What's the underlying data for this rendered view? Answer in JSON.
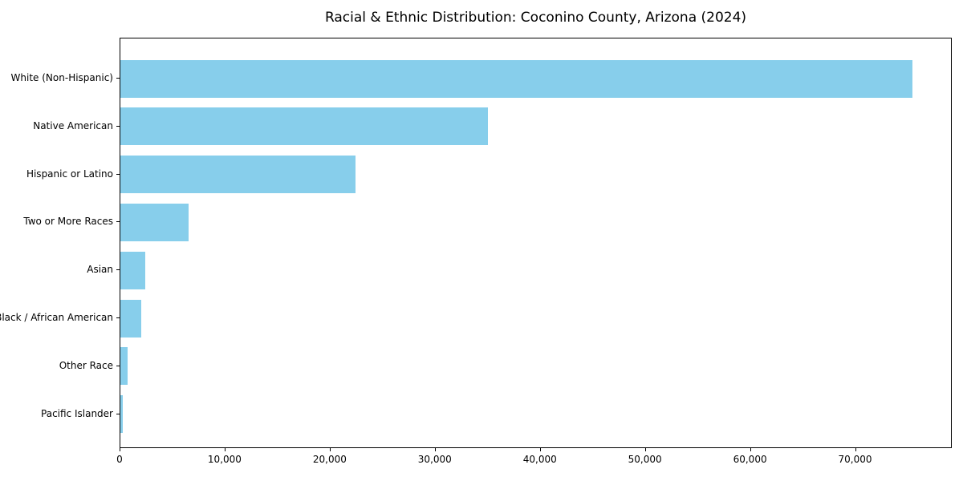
{
  "figure": {
    "background_color": "#ffffff",
    "frame_color": "#000000"
  },
  "chart_data": {
    "type": "bar",
    "orientation": "horizontal",
    "title": "Racial & Ethnic Distribution: Coconino County, Arizona (2024)",
    "xlabel": "",
    "ylabel": "",
    "categories": [
      "White (Non-Hispanic)",
      "Native American",
      "Hispanic or Latino",
      "Two or More Races",
      "Asian",
      "Black / African American",
      "Other Race",
      "Pacific Islander"
    ],
    "values": [
      75400,
      35000,
      22400,
      6500,
      2400,
      2000,
      650,
      200
    ],
    "xlim": [
      0,
      79200
    ],
    "xticks": [
      0,
      10000,
      20000,
      30000,
      40000,
      50000,
      60000,
      70000
    ],
    "xtick_labels": [
      "0",
      "10,000",
      "20,000",
      "30,000",
      "40,000",
      "50,000",
      "60,000",
      "70,000"
    ],
    "bar_color": "#87CEEB",
    "grid": false,
    "legend_position": "none"
  }
}
